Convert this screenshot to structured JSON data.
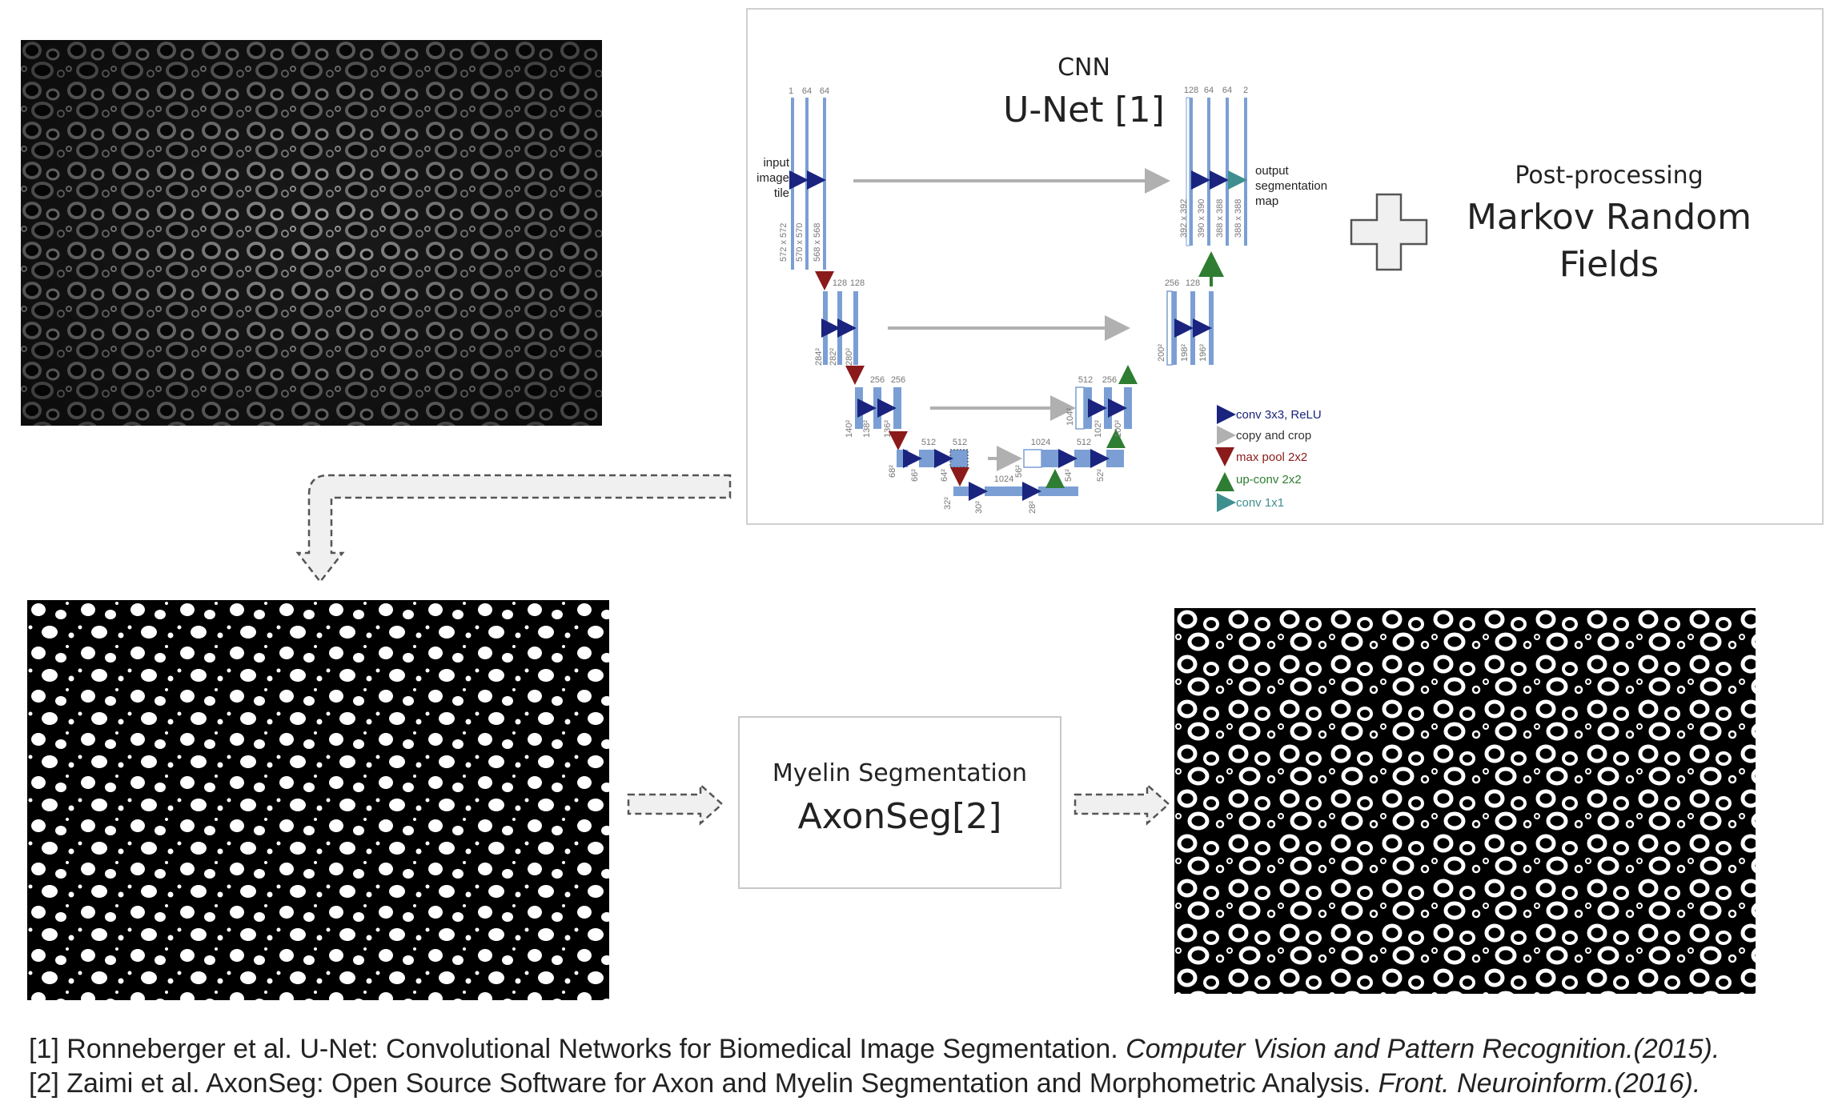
{
  "cnn": {
    "small_label": "CNN",
    "big_label": "U-Net [1]"
  },
  "postprocessing": {
    "small_label": "Post-processing",
    "big_label_line1": "Markov Random",
    "big_label_line2": "Fields"
  },
  "myelin": {
    "small_label": "Myelin Segmentation",
    "big_label": "AxonSeg[2]"
  },
  "unet": {
    "input_label": [
      "input",
      "image",
      "tile"
    ],
    "output_label": [
      "output",
      "segmentation",
      "map"
    ],
    "channel_labels": [
      "1",
      "64",
      "64",
      "128",
      "128",
      "256",
      "256",
      "512",
      "512",
      "1024",
      "1024",
      "512",
      "256",
      "128",
      "128",
      "64",
      "64",
      "2",
      "512",
      "256"
    ],
    "size_labels": [
      "572 x 572",
      "570 x 570",
      "568 x 568",
      "284²",
      "282²",
      "280²",
      "140²",
      "138²",
      "136²",
      "68²",
      "66²",
      "64²",
      "32²",
      "30²",
      "28²",
      "56²",
      "54²",
      "52²",
      "104²",
      "102²",
      "100²",
      "200²",
      "198²",
      "196²",
      "392 x 392",
      "390 x 390",
      "388 x 388",
      "388 x 388"
    ],
    "legend": [
      {
        "label": "conv 3x3, ReLU",
        "color": "#1a237e"
      },
      {
        "label": "copy and crop",
        "color": "#9e9e9e"
      },
      {
        "label": "max pool 2x2",
        "color": "#8b1a1a"
      },
      {
        "label": "up-conv 2x2",
        "color": "#2e7d32"
      },
      {
        "label": "conv 1x1",
        "color": "#3f8f8f"
      }
    ]
  },
  "references": {
    "ref1_text": "[1] Ronneberger et al. U-Net: Convolutional Networks for Biomedical Image Segmentation. ",
    "ref1_source": "Computer Vision and Pattern Recognition.(2015).",
    "ref2_text": "[2]  Zaimi et al. AxonSeg: Open Source Software for Axon and Myelin Segmentation and Morphometric Analysis. ",
    "ref2_source": "Front. Neuroinform.(2016)."
  },
  "colors": {
    "unet_block": "#7b9fd4",
    "arrow_outline": "#555555",
    "arrow_fill": "#f0f0f0"
  }
}
